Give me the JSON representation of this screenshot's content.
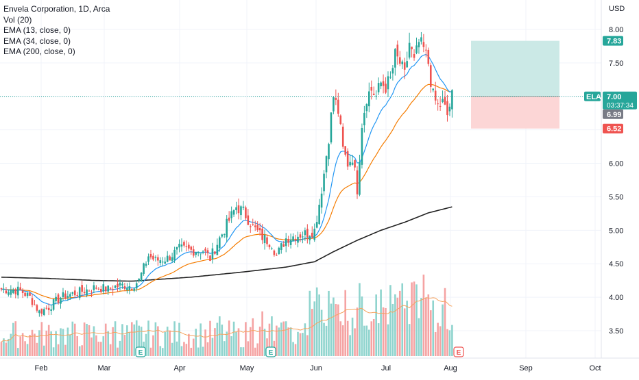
{
  "chart_data": {
    "type": "candlestick",
    "title": "Envela Corporation, 1D, Arca",
    "symbol": "ELA",
    "currency_label": "USD",
    "legend": [
      "Vol (20)",
      "EMA (13, close, 0)",
      "EMA (34, close, 0)",
      "EMA (200, close, 0)"
    ],
    "x_tick_labels": [
      "Feb",
      "Mar",
      "Apr",
      "May",
      "Jun",
      "Jul",
      "Aug",
      "Sep",
      "Oct"
    ],
    "y_ticks": [
      "3.50",
      "4.00",
      "4.50",
      "5.00",
      "5.50",
      "6.00",
      "6.50",
      "7.00",
      "7.50",
      "8.00"
    ],
    "ylim": [
      3.0,
      8.25
    ],
    "last_price": "7.00",
    "countdown": "03:37:34",
    "prev_price": "6.99",
    "target_price": "7.83",
    "stop_price": "6.52",
    "position": {
      "entry": 7.0,
      "target": 7.83,
      "stop": 6.52
    },
    "earnings_label": "E",
    "anchors_close": [
      [
        0,
        4.12
      ],
      [
        8,
        4.1
      ],
      [
        12,
        4.0
      ],
      [
        16,
        3.78
      ],
      [
        20,
        3.85
      ],
      [
        25,
        4.0
      ],
      [
        30,
        4.05
      ],
      [
        35,
        4.1
      ],
      [
        40,
        4.15
      ],
      [
        45,
        4.12
      ],
      [
        50,
        4.18
      ],
      [
        55,
        4.17
      ],
      [
        58,
        4.25
      ],
      [
        62,
        4.62
      ],
      [
        65,
        4.55
      ],
      [
        70,
        4.58
      ],
      [
        75,
        4.72
      ],
      [
        80,
        4.7
      ],
      [
        85,
        4.7
      ],
      [
        88,
        4.58
      ],
      [
        92,
        4.88
      ],
      [
        96,
        5.15
      ],
      [
        99,
        5.35
      ],
      [
        102,
        5.28
      ],
      [
        106,
        5.05
      ],
      [
        110,
        4.9
      ],
      [
        114,
        4.8
      ],
      [
        116,
        4.62
      ],
      [
        120,
        4.88
      ],
      [
        124,
        4.92
      ],
      [
        128,
        4.95
      ],
      [
        132,
        5.0
      ],
      [
        134,
        5.4
      ],
      [
        136,
        5.85
      ],
      [
        138,
        6.4
      ],
      [
        140,
        7.0
      ],
      [
        142,
        6.78
      ],
      [
        144,
        6.2
      ],
      [
        146,
        6.0
      ],
      [
        148,
        6.1
      ],
      [
        150,
        5.62
      ],
      [
        152,
        6.6
      ],
      [
        154,
        7.0
      ],
      [
        156,
        7.1
      ],
      [
        158,
        7.0
      ],
      [
        160,
        7.2
      ],
      [
        162,
        7.15
      ],
      [
        164,
        7.25
      ],
      [
        166,
        7.6
      ],
      [
        168,
        7.5
      ],
      [
        170,
        7.3
      ],
      [
        172,
        7.8
      ],
      [
        174,
        7.5
      ],
      [
        176,
        7.8
      ],
      [
        178,
        7.7
      ],
      [
        180,
        7.5
      ],
      [
        182,
        7.0
      ],
      [
        184,
        6.85
      ],
      [
        186,
        6.9
      ],
      [
        188,
        6.72
      ],
      [
        190,
        7.0
      ]
    ],
    "volume_events": [
      [
        25,
        28
      ],
      [
        48,
        35
      ],
      [
        57,
        36
      ],
      [
        66,
        30
      ],
      [
        92,
        40
      ],
      [
        100,
        28
      ],
      [
        106,
        38
      ],
      [
        110,
        45
      ],
      [
        114,
        40
      ],
      [
        120,
        35
      ],
      [
        132,
        55
      ],
      [
        134,
        62
      ],
      [
        138,
        50
      ],
      [
        140,
        58
      ],
      [
        142,
        52
      ],
      [
        150,
        46
      ],
      [
        152,
        60
      ],
      [
        158,
        62
      ],
      [
        166,
        58
      ],
      [
        170,
        48
      ],
      [
        174,
        75
      ],
      [
        178,
        82
      ],
      [
        180,
        60
      ],
      [
        182,
        56
      ],
      [
        186,
        52
      ]
    ],
    "volume_seed": 7,
    "ema200_anchors": [
      [
        0,
        4.3
      ],
      [
        20,
        4.28
      ],
      [
        40,
        4.25
      ],
      [
        55,
        4.24
      ],
      [
        80,
        4.3
      ],
      [
        100,
        4.37
      ],
      [
        120,
        4.45
      ],
      [
        132,
        4.53
      ],
      [
        140,
        4.68
      ],
      [
        150,
        4.85
      ],
      [
        160,
        5.0
      ],
      [
        170,
        5.12
      ],
      [
        180,
        5.26
      ],
      [
        190,
        5.35
      ]
    ]
  },
  "colors": {
    "up": "#26a69a",
    "down": "#ef5350",
    "vol_up": "#8fd4ce",
    "vol_down": "#f5a3a3",
    "ema13": "#2196f3",
    "ema34": "#f57c00",
    "ema200": "#222222",
    "target_zone": "#cbe9e6",
    "stop_zone": "#fcd6d6",
    "axis_text": "#131722",
    "grid": "#f0f3fa"
  }
}
